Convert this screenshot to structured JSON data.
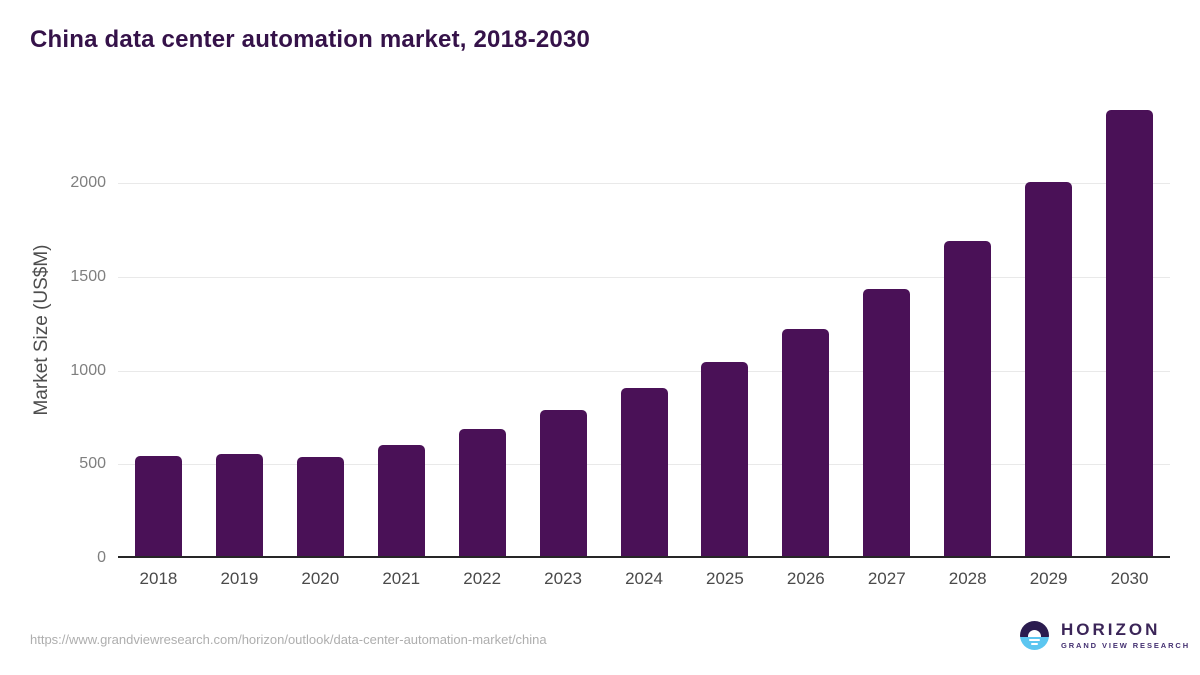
{
  "title": "China data center automation market, 2018-2030",
  "chart_data": {
    "type": "bar",
    "title": "China data center automation market, 2018-2030",
    "categories": [
      "2018",
      "2019",
      "2020",
      "2021",
      "2022",
      "2023",
      "2024",
      "2025",
      "2026",
      "2027",
      "2028",
      "2029",
      "2030"
    ],
    "values": [
      535,
      542,
      528,
      590,
      675,
      778,
      895,
      1035,
      1210,
      1425,
      1680,
      1995,
      2380
    ],
    "xlabel": "",
    "ylabel": "Market Size (US$M)",
    "ylim": [
      0,
      2443
    ],
    "yticks": [
      0,
      500,
      1000,
      1500,
      2000
    ],
    "grid": true,
    "legend": false,
    "bar_color": "#4a1157"
  },
  "footer": {
    "source_url": "https://www.grandviewresearch.com/horizon/outlook/data-center-automation-market/china",
    "brand": {
      "name": "HORIZON",
      "tagline": "GRAND VIEW RESEARCH",
      "icon": "sun-over-horizon-icon"
    }
  },
  "colors": {
    "title_text": "#351249",
    "bar": "#4a1157",
    "axis_title_text": "#4d4d4d",
    "y_tick_text": "#7f7f7f",
    "x_tick_text": "#4a4a4a",
    "gridline": "#e9e9e9",
    "axis_line": "#262626",
    "source_url_text": "#aeaeae",
    "logo_dark": "#2b1c4f",
    "logo_blue": "#5cc6f0",
    "logo_text": "#3b2558"
  }
}
